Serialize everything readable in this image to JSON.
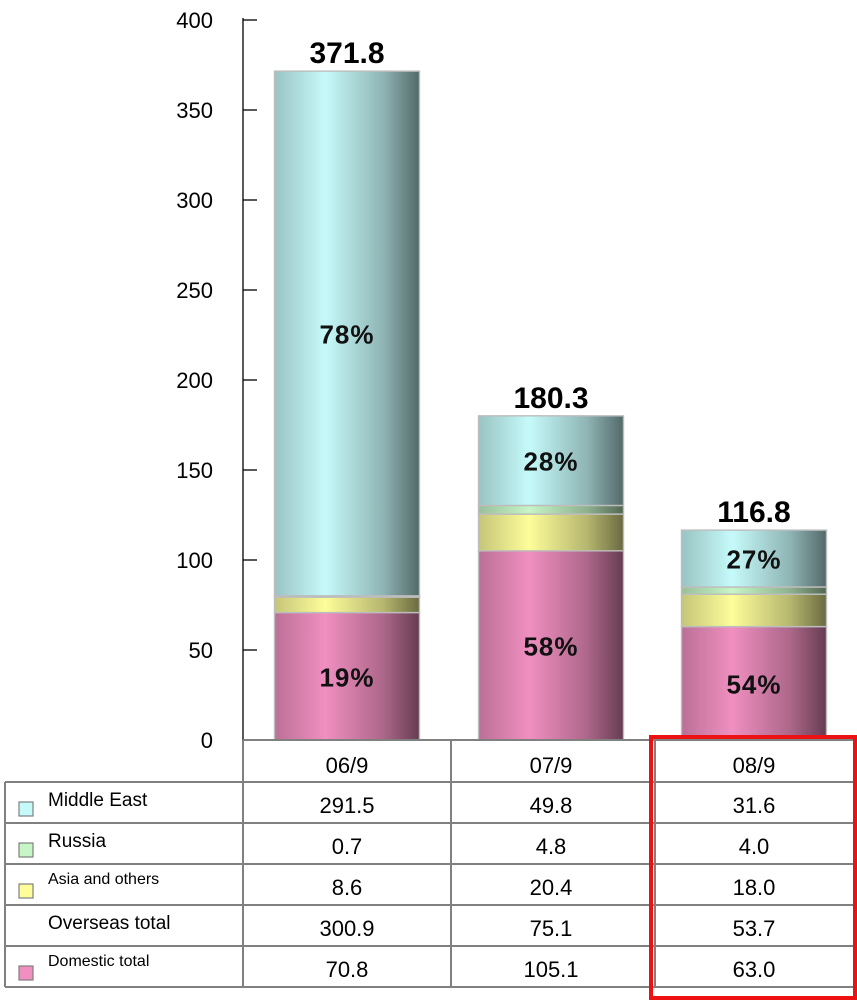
{
  "chart_data": {
    "type": "bar",
    "stacked": true,
    "categories": [
      "06/9",
      "07/9",
      "08/9"
    ],
    "ylim": [
      0,
      400
    ],
    "yticks": [
      0,
      50,
      100,
      150,
      200,
      250,
      300,
      350,
      400
    ],
    "totals": [
      "371.8",
      "180.3",
      "116.8"
    ],
    "highlighted_category": "08/9",
    "series": [
      {
        "name": "Domestic total",
        "values": [
          70.8,
          105.1,
          63.0
        ],
        "labels": [
          "70.8",
          "105.1",
          "63.0"
        ],
        "pct_labels": [
          "19%",
          "58%",
          "54%"
        ],
        "color": "#f08fc0"
      },
      {
        "name": "Asia and others",
        "values": [
          8.6,
          20.4,
          18.0
        ],
        "labels": [
          "8.6",
          "20.4",
          "18.0"
        ],
        "color": "#fdfd9a"
      },
      {
        "name": "Russia",
        "values": [
          0.7,
          4.8,
          4.0
        ],
        "labels": [
          "0.7",
          "4.8",
          "4.0"
        ],
        "color": "#c6f5c6"
      },
      {
        "name": "Middle East",
        "values": [
          291.5,
          49.8,
          31.6
        ],
        "labels": [
          "291.5",
          "49.8",
          "31.6"
        ],
        "pct_labels": [
          "78%",
          "28%",
          "27%"
        ],
        "color": "#c6fafa"
      }
    ],
    "table": {
      "rows": [
        {
          "label": "Middle East",
          "series": "Middle East",
          "values": [
            "291.5",
            "49.8",
            "31.6"
          ],
          "swatch": "#c6fafa"
        },
        {
          "label": "Russia",
          "series": "Russia",
          "values": [
            "0.7",
            "4.8",
            "4.0"
          ],
          "swatch": "#c6f5c6"
        },
        {
          "label": "Asia and others",
          "series": "Asia and others",
          "values": [
            "8.6",
            "20.4",
            "18.0"
          ],
          "swatch": "#fdfd9a"
        },
        {
          "label": "Overseas total",
          "series": null,
          "values": [
            "300.9",
            "75.1",
            "53.7"
          ],
          "swatch": null
        },
        {
          "label": "Domestic total",
          "series": "Domestic total",
          "values": [
            "70.8",
            "105.1",
            "63.0"
          ],
          "swatch": "#f08fc0"
        }
      ]
    },
    "colors": {
      "highlight": "#ee1111",
      "grid": "#999999",
      "axis": "#000000"
    }
  }
}
